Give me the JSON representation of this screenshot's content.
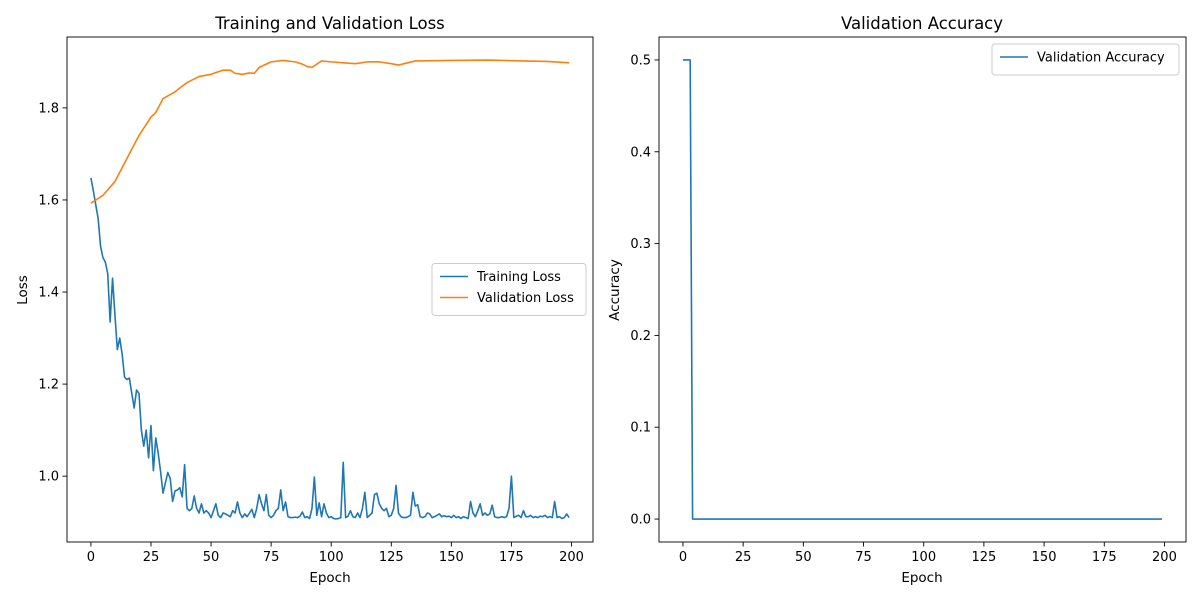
{
  "chart_data": [
    {
      "type": "line",
      "title": "Training and Validation Loss",
      "xlabel": "Epoch",
      "ylabel": "Loss",
      "xlim": [
        -9.95,
        208.95
      ],
      "ylim": [
        0.857,
        1.954
      ],
      "xticks": [
        0,
        25,
        50,
        75,
        100,
        125,
        150,
        175,
        200
      ],
      "xtick_labels": [
        "0",
        "25",
        "50",
        "75",
        "100",
        "125",
        "150",
        "175",
        "200"
      ],
      "yticks": [
        1.0,
        1.2,
        1.4,
        1.6,
        1.8
      ],
      "ytick_labels": [
        "1.0",
        "1.2",
        "1.4",
        "1.6",
        "1.8"
      ],
      "grid": false,
      "legend_position": "center-right",
      "series": [
        {
          "name": "Training Loss",
          "color": "#1f77b4",
          "x_start": 0,
          "values": [
            1.648,
            1.62,
            1.59,
            1.56,
            1.5,
            1.475,
            1.465,
            1.44,
            1.335,
            1.43,
            1.35,
            1.275,
            1.3,
            1.265,
            1.215,
            1.21,
            1.213,
            1.18,
            1.148,
            1.187,
            1.18,
            1.1,
            1.065,
            1.1,
            1.04,
            1.11,
            1.012,
            1.083,
            1.05,
            1.01,
            0.963,
            0.985,
            1.008,
            0.995,
            0.945,
            0.968,
            0.97,
            0.975,
            0.955,
            1.025,
            0.93,
            0.925,
            0.93,
            0.957,
            0.93,
            0.92,
            0.94,
            0.92,
            0.925,
            0.92,
            0.91,
            0.925,
            0.94,
            0.915,
            0.91,
            0.92,
            0.918,
            0.915,
            0.912,
            0.925,
            0.92,
            0.944,
            0.92,
            0.91,
            0.918,
            0.912,
            0.92,
            0.928,
            0.91,
            0.93,
            0.96,
            0.94,
            0.925,
            0.96,
            0.915,
            0.91,
            0.915,
            0.925,
            0.93,
            0.97,
            0.925,
            0.944,
            0.912,
            0.91,
            0.91,
            0.911,
            0.91,
            0.913,
            0.922,
            0.91,
            0.912,
            0.908,
            0.93,
            0.998,
            0.915,
            0.942,
            0.912,
            0.94,
            0.92,
            0.91,
            0.912,
            0.908,
            0.907,
            0.908,
            0.91,
            1.03,
            0.91,
            0.913,
            0.925,
            0.912,
            0.91,
            0.92,
            0.91,
            0.93,
            0.965,
            0.91,
            0.915,
            0.92,
            0.96,
            0.963,
            0.94,
            0.93,
            0.925,
            0.93,
            0.912,
            0.915,
            0.93,
            0.98,
            0.92,
            0.912,
            0.91,
            0.91,
            0.912,
            0.915,
            0.965,
            0.935,
            0.938,
            0.912,
            0.91,
            0.912,
            0.92,
            0.918,
            0.91,
            0.912,
            0.915,
            0.918,
            0.912,
            0.914,
            0.912,
            0.913,
            0.91,
            0.915,
            0.91,
            0.912,
            0.908,
            0.912,
            0.91,
            0.908,
            0.945,
            0.92,
            0.912,
            0.925,
            0.94,
            0.915,
            0.92,
            0.915,
            0.918,
            0.937,
            0.912,
            0.91,
            0.91,
            0.912,
            0.91,
            0.912,
            0.93,
            1.0,
            0.91,
            0.913,
            0.915,
            0.91,
            0.925,
            0.912,
            0.912,
            0.915,
            0.91,
            0.912,
            0.91,
            0.913,
            0.912,
            0.915,
            0.91,
            0.912,
            0.91,
            0.945,
            0.91,
            0.912,
            0.908,
            0.91,
            0.918,
            0.91
          ]
        },
        {
          "name": "Validation Loss",
          "color": "#ff7f0e",
          "x": [
            0,
            5,
            10,
            15,
            20,
            25,
            27,
            30,
            35,
            40,
            45,
            50,
            55,
            58,
            60,
            63,
            66,
            68,
            70,
            75,
            80,
            85,
            88,
            90,
            92,
            96,
            100,
            110,
            115,
            120,
            125,
            128,
            135,
            150,
            165,
            180,
            190,
            199
          ],
          "values": [
            1.593,
            1.61,
            1.64,
            1.69,
            1.74,
            1.78,
            1.79,
            1.82,
            1.835,
            1.855,
            1.868,
            1.873,
            1.882,
            1.882,
            1.875,
            1.873,
            1.876,
            1.875,
            1.888,
            1.9,
            1.903,
            1.9,
            1.895,
            1.89,
            1.888,
            1.902,
            1.9,
            1.896,
            1.9,
            1.9,
            1.896,
            1.893,
            1.902,
            1.903,
            1.904,
            1.902,
            1.901,
            1.898
          ]
        }
      ]
    },
    {
      "type": "line",
      "title": "Validation Accuracy",
      "xlabel": "Epoch",
      "ylabel": "Accuracy",
      "xlim": [
        -9.95,
        208.95
      ],
      "ylim": [
        -0.025,
        0.525
      ],
      "xticks": [
        0,
        25,
        50,
        75,
        100,
        125,
        150,
        175,
        200
      ],
      "xtick_labels": [
        "0",
        "25",
        "50",
        "75",
        "100",
        "125",
        "150",
        "175",
        "200"
      ],
      "yticks": [
        0.0,
        0.1,
        0.2,
        0.3,
        0.4,
        0.5
      ],
      "ytick_labels": [
        "0.0",
        "0.1",
        "0.2",
        "0.3",
        "0.4",
        "0.5"
      ],
      "grid": false,
      "legend_position": "upper-right",
      "series": [
        {
          "name": "Validation Accuracy",
          "color": "#1f77b4",
          "x": [
            0,
            1,
            2,
            3,
            4,
            199
          ],
          "values": [
            0.5,
            0.5,
            0.5,
            0.5,
            0.0,
            0.0
          ]
        }
      ]
    }
  ]
}
